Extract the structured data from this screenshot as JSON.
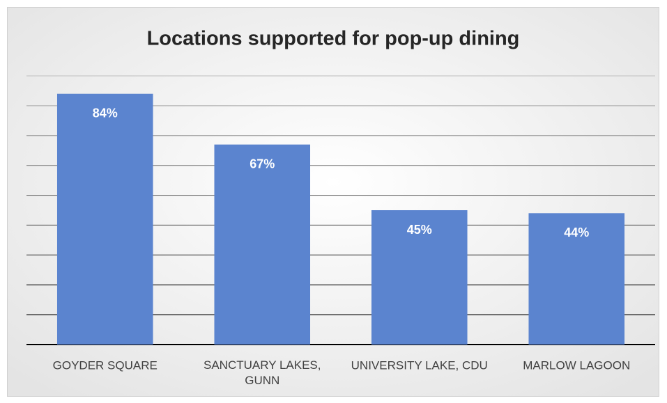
{
  "chart_data": {
    "type": "bar",
    "title": "Locations supported for pop-up dining",
    "categories": [
      "GOYDER SQUARE",
      "SANCTUARY LAKES, GUNN",
      "UNIVERSITY LAKE, CDU",
      "MARLOW LAGOON"
    ],
    "values": [
      84,
      67,
      45,
      44
    ],
    "value_labels": [
      "84%",
      "67%",
      "45%",
      "44%"
    ],
    "color": "#5b84cf",
    "ylim": [
      0,
      90
    ],
    "yticks": [
      0,
      10,
      20,
      30,
      40,
      50,
      60,
      70,
      80,
      90
    ],
    "grid": true
  }
}
